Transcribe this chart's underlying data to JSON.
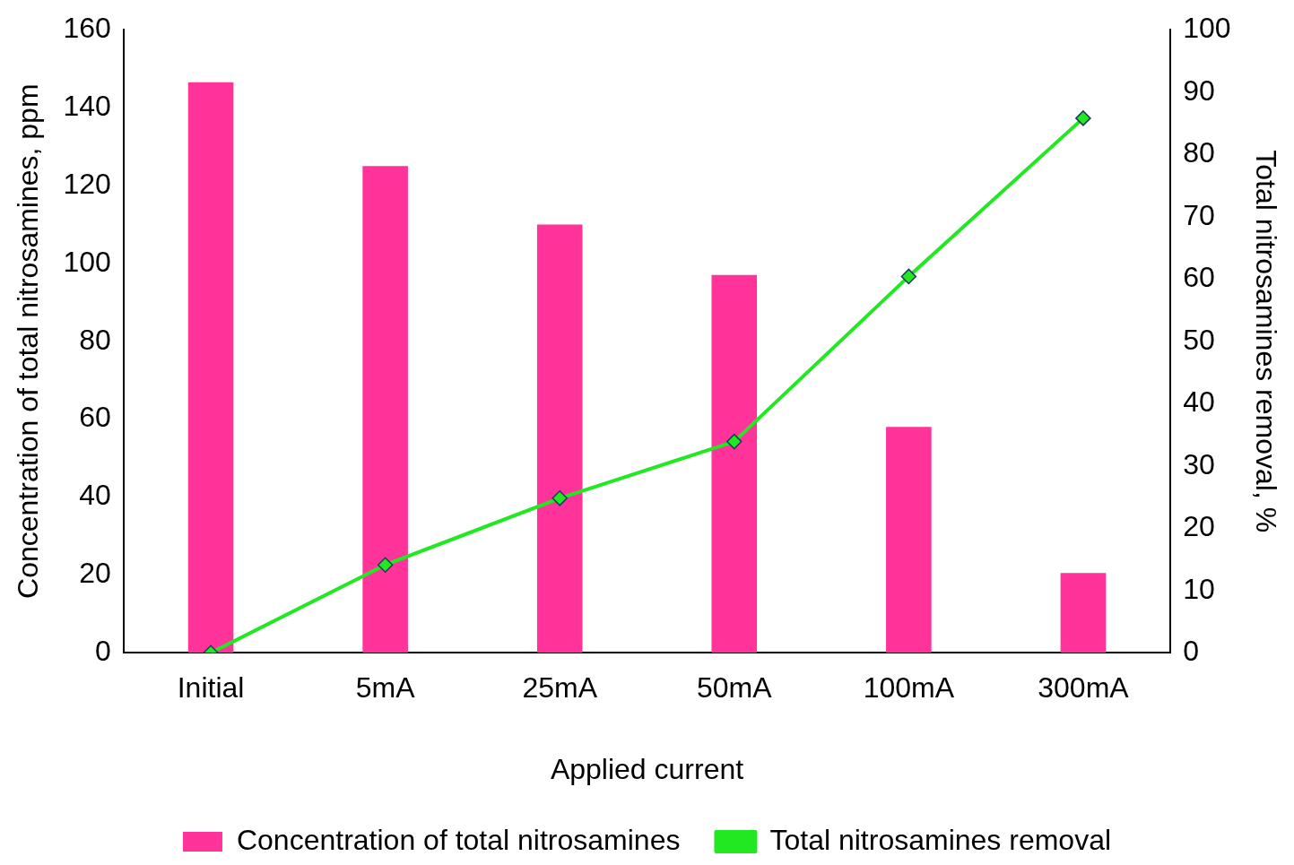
{
  "chart_data": {
    "type": "bar",
    "xlabel": "Applied current",
    "ylabel": "Concentration of total nitrosamines, ppm",
    "y2label": "Total nitrosamines removal, %",
    "categories": [
      "Initial",
      "5mA",
      "25mA",
      "50mA",
      "100mA",
      "300mA"
    ],
    "series": [
      {
        "name": "Concentration of total nitrosamines",
        "color": "#ff3399",
        "values": [
          146.5,
          125,
          110,
          97,
          58,
          20.5
        ]
      },
      {
        "name": "Total nitrosamines removal",
        "type": "line",
        "axis": "y2",
        "color": "#22e822",
        "values": [
          0,
          14.1,
          24.8,
          33.9,
          60.4,
          85.8
        ]
      }
    ],
    "ylim": [
      0,
      160
    ],
    "yticks": [
      0,
      20,
      40,
      60,
      80,
      100,
      120,
      140,
      160
    ],
    "y2lim": [
      0,
      100
    ],
    "y2ticks": [
      0,
      10,
      20,
      30,
      40,
      50,
      60,
      70,
      80,
      90,
      100
    ],
    "grid": false,
    "legend": "bottom",
    "marker": "diamond",
    "line_style": "solid"
  }
}
